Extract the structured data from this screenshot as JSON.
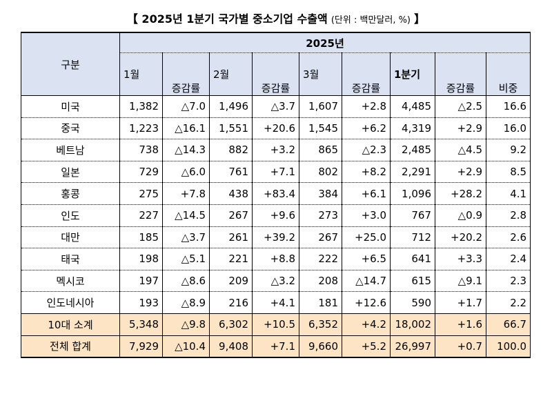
{
  "title": "【 2025년 1분기 국가별 중소기업 수출액",
  "unit_note": "(단위 : 백만달러, %)",
  "title_end": "】",
  "header": {
    "category_label": "구분",
    "year_label": "2025년",
    "months": [
      "1월",
      "2월",
      "3월"
    ],
    "growth_label": "증감률",
    "quarter_label": "1분기",
    "share_label": "비중"
  },
  "rows": [
    {
      "country": "미국",
      "m1": "1,382",
      "g1": "△7.0",
      "m2": "1,496",
      "g2": "△3.7",
      "m3": "1,607",
      "g3": "+2.8",
      "q": "4,485",
      "gq": "△2.5",
      "share": "16.6"
    },
    {
      "country": "중국",
      "m1": "1,223",
      "g1": "△16.1",
      "m2": "1,551",
      "g2": "+20.6",
      "m3": "1,545",
      "g3": "+6.2",
      "q": "4,319",
      "gq": "+2.9",
      "share": "16.0"
    },
    {
      "country": "베트남",
      "m1": "738",
      "g1": "△14.3",
      "m2": "882",
      "g2": "+3.2",
      "m3": "865",
      "g3": "△2.3",
      "q": "2,485",
      "gq": "△4.5",
      "share": "9.2"
    },
    {
      "country": "일본",
      "m1": "729",
      "g1": "△6.0",
      "m2": "761",
      "g2": "+7.1",
      "m3": "802",
      "g3": "+8.2",
      "q": "2,291",
      "gq": "+2.9",
      "share": "8.5"
    },
    {
      "country": "홍콩",
      "m1": "275",
      "g1": "+7.8",
      "m2": "438",
      "g2": "+83.4",
      "m3": "384",
      "g3": "+6.1",
      "q": "1,096",
      "gq": "+28.2",
      "share": "4.1"
    },
    {
      "country": "인도",
      "m1": "227",
      "g1": "△14.5",
      "m2": "267",
      "g2": "+9.6",
      "m3": "273",
      "g3": "+3.0",
      "q": "767",
      "gq": "△0.9",
      "share": "2.8"
    },
    {
      "country": "대만",
      "m1": "185",
      "g1": "△3.7",
      "m2": "261",
      "g2": "+39.2",
      "m3": "267",
      "g3": "+25.0",
      "q": "712",
      "gq": "+20.2",
      "share": "2.6"
    },
    {
      "country": "태국",
      "m1": "198",
      "g1": "△5.1",
      "m2": "221",
      "g2": "+8.8",
      "m3": "222",
      "g3": "+6.5",
      "q": "641",
      "gq": "+3.3",
      "share": "2.4"
    },
    {
      "country": "멕시코",
      "m1": "197",
      "g1": "△8.6",
      "m2": "209",
      "g2": "△3.2",
      "m3": "208",
      "g3": "△14.7",
      "q": "615",
      "gq": "△9.1",
      "share": "2.3"
    },
    {
      "country": "인도네시아",
      "m1": "193",
      "g1": "△8.9",
      "m2": "216",
      "g2": "+4.1",
      "m3": "181",
      "g3": "+12.6",
      "q": "590",
      "gq": "+1.7",
      "share": "2.2"
    }
  ],
  "subtotal": {
    "country": "10대 소계",
    "m1": "5,348",
    "g1": "△9.8",
    "m2": "6,302",
    "g2": "+10.5",
    "m3": "6,352",
    "g3": "+4.2",
    "q": "18,002",
    "gq": "+1.6",
    "share": "66.7"
  },
  "total": {
    "country": "전체 합계",
    "m1": "7,929",
    "g1": "△10.4",
    "m2": "9,408",
    "g2": "+7.1",
    "m3": "9,660",
    "g3": "+5.2",
    "q": "26,997",
    "gq": "+0.7",
    "share": "100.0"
  },
  "colors": {
    "header_bg": "#dbe3f3",
    "summary_bg": "#fce4c4"
  }
}
